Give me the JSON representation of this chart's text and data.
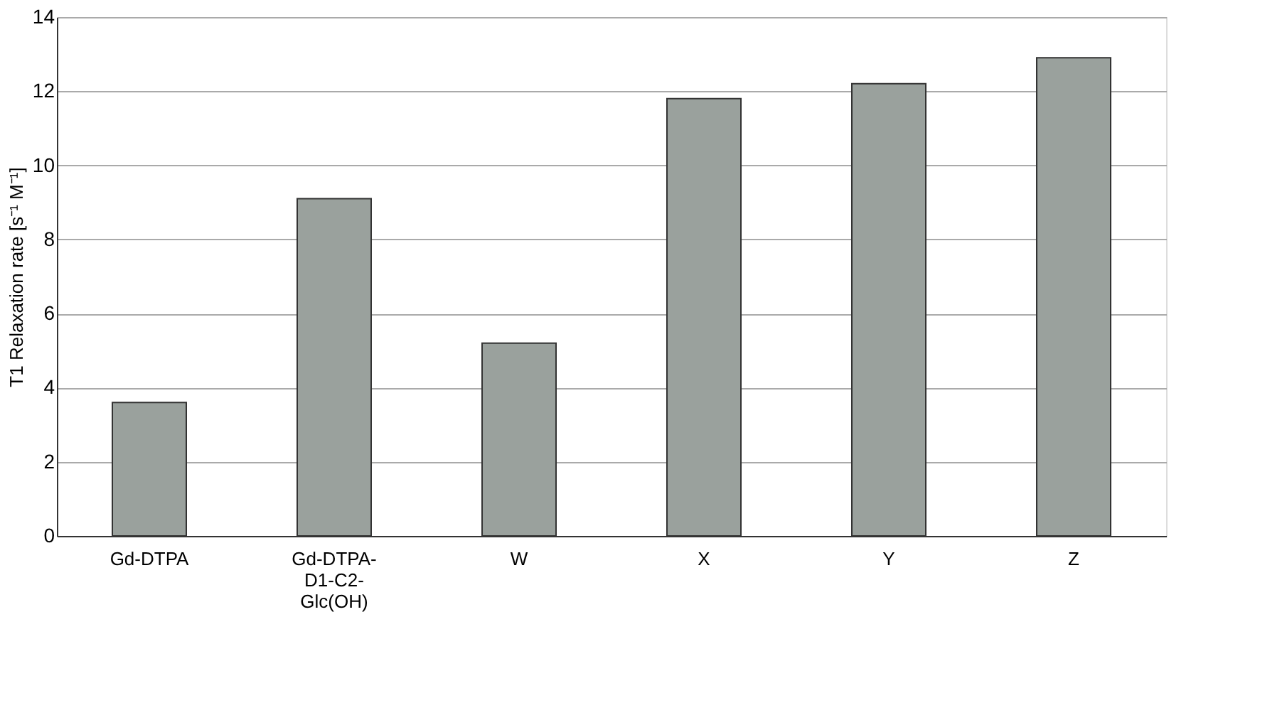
{
  "chart_data": {
    "type": "bar",
    "ylabel": "T1 Relaxation rate  [s⁻¹ M⁻¹]",
    "categories": [
      "Gd-DTPA",
      "Gd-DTPA-D1-C2-Glc(OH)",
      "W",
      "X",
      "Y",
      "Z"
    ],
    "values": [
      3.6,
      9.1,
      5.2,
      11.8,
      12.2,
      12.9
    ],
    "color": "#9aa19d",
    "ylim": [
      0,
      14
    ],
    "yticks": [
      0,
      2,
      4,
      6,
      8,
      10,
      12,
      14
    ],
    "grid": "y"
  }
}
